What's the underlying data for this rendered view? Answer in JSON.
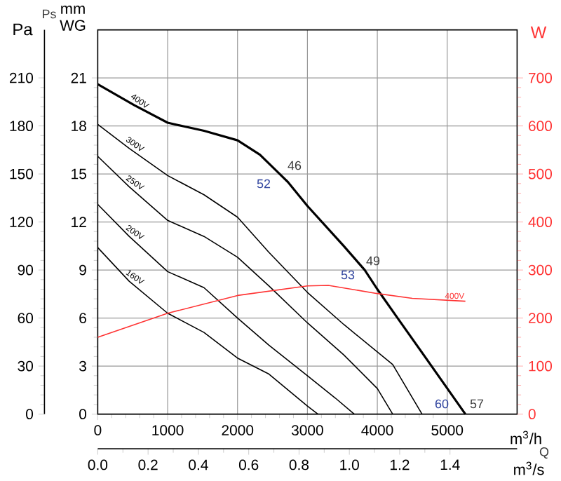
{
  "chart_data": {
    "type": "line",
    "xlabel": "m$^{3}$/h",
    "x2label": "m$^{3}$/s",
    "ylabel": "mm WG",
    "y3label": "Pa",
    "y2label": "W",
    "xlim": [
      0,
      6000
    ],
    "xticks": [
      0,
      1000,
      2000,
      3000,
      4000,
      5000
    ],
    "x2lim": [
      0,
      1.6667
    ],
    "x2ticks": [
      {
        "value": 0,
        "label": "0.0"
      },
      0.2,
      0.4,
      0.6,
      0.8,
      {
        "value": 1,
        "label": "1.0"
      },
      1.2,
      1.4
    ],
    "ylim": [
      0,
      24
    ],
    "yticks": [
      0,
      3,
      6,
      9,
      12,
      15,
      18,
      21
    ],
    "y3lim": [
      0,
      240
    ],
    "y3ticks": [
      0,
      30,
      60,
      90,
      120,
      150,
      180,
      210
    ],
    "y2lim": [
      0,
      800
    ],
    "y2ticks": [
      0,
      100,
      200,
      300,
      400,
      500,
      600,
      700
    ],
    "grid": true,
    "marker": "none",
    "series": [
      {
        "name": "400V",
        "color": "#000000",
        "x": [
          0,
          520,
          1000,
          1520,
          2000,
          2320,
          2720,
          3000,
          3520,
          3820,
          4000,
          4290,
          4760,
          5260
        ],
        "values": [
          20.6,
          19.3,
          18.2,
          17.7,
          17.1,
          16.2,
          14.5,
          13.0,
          10.5,
          9.0,
          7.8,
          6.0,
          3.1,
          0
        ]
      },
      {
        "name": "300V",
        "color": "#000000",
        "x": [
          0,
          450,
          1000,
          1520,
          2000,
          2450,
          3000,
          3520,
          4220,
          4640
        ],
        "values": [
          18.1,
          16.6,
          14.9,
          13.7,
          12.3,
          10.1,
          7.6,
          5.6,
          3.1,
          0
        ]
      },
      {
        "name": "250V",
        "color": "#000000",
        "x": [
          0,
          450,
          1000,
          1520,
          2000,
          2450,
          3000,
          3520,
          4000,
          4220
        ],
        "values": [
          16.1,
          14.2,
          12.1,
          11.1,
          9.8,
          8.0,
          5.7,
          3.7,
          1.6,
          0
        ]
      },
      {
        "name": "200V",
        "color": "#000000",
        "x": [
          0,
          450,
          1000,
          1520,
          2000,
          2450,
          3000,
          3400,
          3670
        ],
        "values": [
          13.1,
          11.1,
          8.9,
          7.9,
          6.0,
          4.3,
          2.4,
          1.0,
          0
        ]
      },
      {
        "name": "160V",
        "color": "#000000",
        "x": [
          0,
          450,
          1000,
          1520,
          2000,
          2450,
          3000,
          3150
        ],
        "values": [
          10.4,
          8.3,
          6.3,
          5.1,
          3.5,
          2.5,
          0.5,
          0
        ]
      },
      {
        "name": "400V",
        "color": "#ff3333",
        "axis": "y2",
        "x": [
          0,
          1000,
          2000,
          3000,
          3300,
          4000,
          4500,
          5260
        ],
        "values": [
          160,
          210,
          247,
          267,
          268,
          251,
          241,
          235
        ]
      }
    ],
    "annotations": [
      "Ps",
      "Q",
      "46",
      "52",
      "49",
      "53",
      "60",
      "57"
    ]
  }
}
